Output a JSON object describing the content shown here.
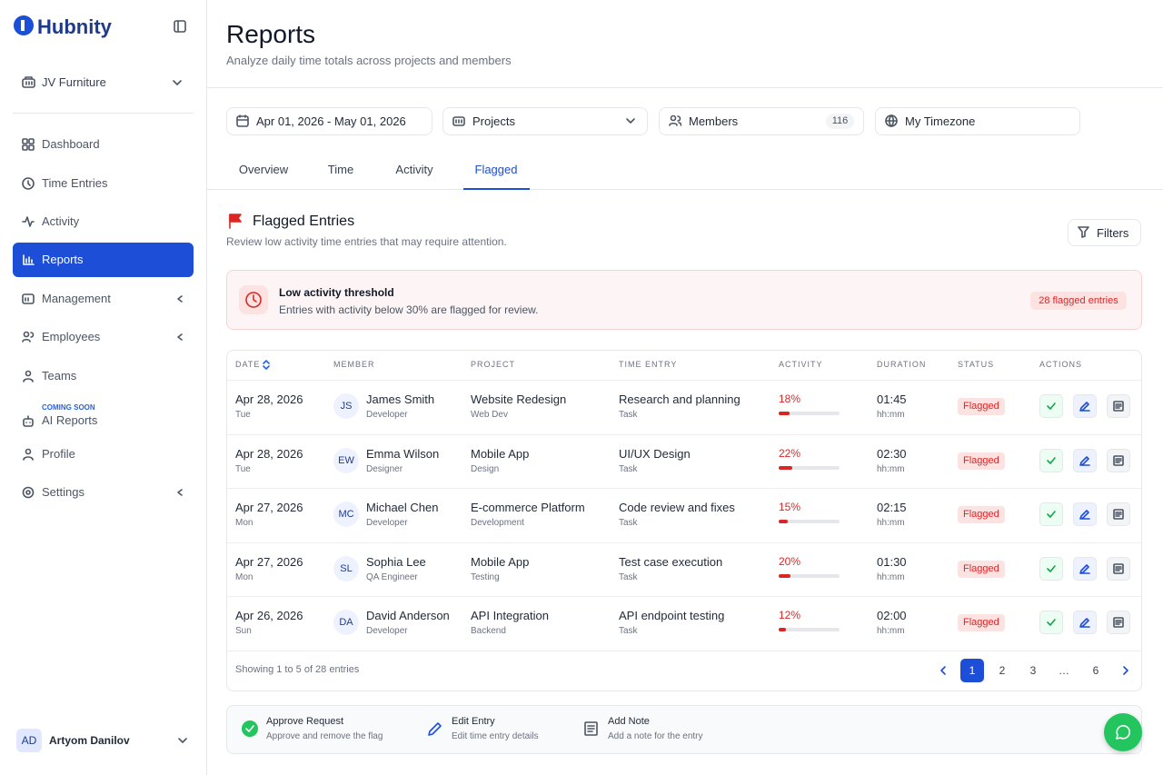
{
  "sidebar": {
    "brand": "Hubnity",
    "workspace": "JV Furniture",
    "nav": [
      {
        "label": "Dashboard"
      },
      {
        "label": "Time Entries"
      },
      {
        "label": "Activity"
      },
      {
        "label": "Reports"
      },
      {
        "label": "Management"
      },
      {
        "label": "Employees"
      },
      {
        "label": "Teams"
      },
      {
        "label": "AI Reports",
        "badge": "COMING SOON"
      },
      {
        "label": "Profile"
      },
      {
        "label": "Settings"
      }
    ],
    "active_nav": 3,
    "user": {
      "initials": "AD",
      "name": "Artyom Danilov"
    }
  },
  "header": {
    "title": "Reports",
    "subtitle": "Analyze daily time totals across projects and members"
  },
  "filters": {
    "date_range": "Apr 01, 2026 - May 01, 2026",
    "projects": "Projects",
    "members": "Members",
    "members_count": "116",
    "timezone": "My Timezone"
  },
  "tabs": [
    "Overview",
    "Time",
    "Activity",
    "Flagged"
  ],
  "active_tab": 3,
  "section": {
    "title": "Flagged Entries",
    "subtitle": "Review low activity time entries that may require attention.",
    "filters_button": "Filters"
  },
  "alert": {
    "title": "Low activity threshold",
    "text": "Entries with activity below 30% are flagged for review.",
    "badge": "28 flagged entries"
  },
  "table": {
    "columns": [
      "DATE",
      "MEMBER",
      "PROJECT",
      "TIME ENTRY",
      "ACTIVITY",
      "DURATION",
      "STATUS",
      "ACTIONS"
    ],
    "rows": [
      {
        "date": "Apr 28, 2026",
        "day": "Tue",
        "initials": "JS",
        "member": "James Smith",
        "role": "Developer",
        "project": "Website Redesign",
        "project_sub": "Web Dev",
        "entry": "Research and planning",
        "entry_type": "Task",
        "activity": {
          "value": 18,
          "label": "18%"
        },
        "duration": "01:45",
        "duration_unit": "hh:mm",
        "status": "Flagged"
      },
      {
        "date": "Apr 28, 2026",
        "day": "Tue",
        "initials": "EW",
        "member": "Emma Wilson",
        "role": "Designer",
        "project": "Mobile App",
        "project_sub": "Design",
        "entry": "UI/UX Design",
        "entry_type": "Task",
        "activity": {
          "value": 22,
          "label": "22%"
        },
        "duration": "02:30",
        "duration_unit": "hh:mm",
        "status": "Flagged"
      },
      {
        "date": "Apr 27, 2026",
        "day": "Mon",
        "initials": "MC",
        "member": "Michael Chen",
        "role": "Developer",
        "project": "E-commerce Platform",
        "project_sub": "Development",
        "entry": "Code review and fixes",
        "entry_type": "Task",
        "activity": {
          "value": 15,
          "label": "15%"
        },
        "duration": "02:15",
        "duration_unit": "hh:mm",
        "status": "Flagged"
      },
      {
        "date": "Apr 27, 2026",
        "day": "Mon",
        "initials": "SL",
        "member": "Sophia Lee",
        "role": "QA Engineer",
        "project": "Mobile App",
        "project_sub": "Testing",
        "entry": "Test case execution",
        "entry_type": "Task",
        "activity": {
          "value": 20,
          "label": "20%"
        },
        "duration": "01:30",
        "duration_unit": "hh:mm",
        "status": "Flagged"
      },
      {
        "date": "Apr 26, 2026",
        "day": "Sun",
        "initials": "DA",
        "member": "David Anderson",
        "role": "Developer",
        "project": "API Integration",
        "project_sub": "Backend",
        "entry": "API endpoint testing",
        "entry_type": "Task",
        "activity": {
          "value": 12,
          "label": "12%"
        },
        "duration": "02:00",
        "duration_unit": "hh:mm",
        "status": "Flagged"
      }
    ],
    "footer": "Showing 1 to 5 of 28 entries",
    "pages": [
      "1",
      "2",
      "3",
      "…",
      "6"
    ],
    "current_page": 0
  },
  "legend": [
    {
      "title": "Approve Request",
      "text": "Approve and remove the flag"
    },
    {
      "title": "Edit Entry",
      "text": "Edit time entry details"
    },
    {
      "title": "Add Note",
      "text": "Add a note for the entry"
    }
  ]
}
